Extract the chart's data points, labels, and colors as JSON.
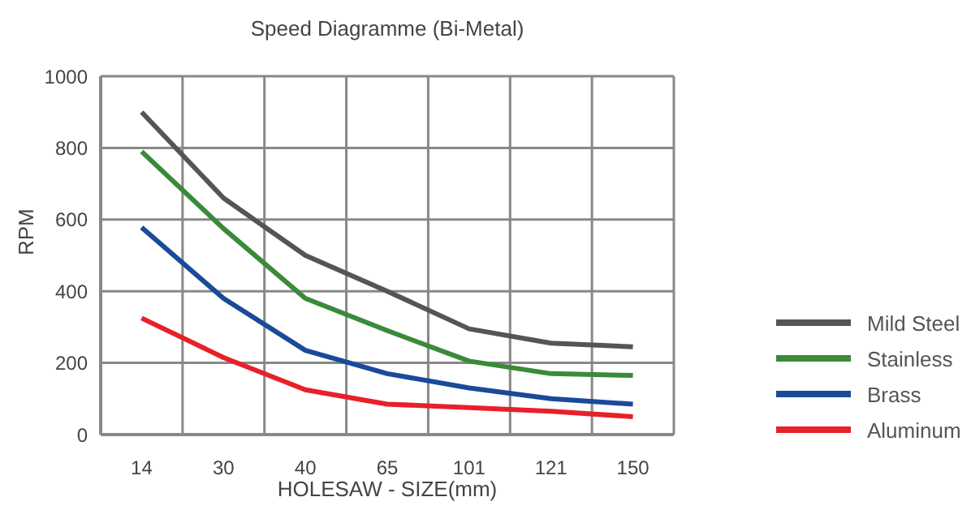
{
  "chart_data": {
    "type": "line",
    "title": "Speed Diagramme (Bi-Metal)",
    "xlabel": "HOLESAW - SIZE(mm)",
    "ylabel": "RPM",
    "categories": [
      "14",
      "30",
      "40",
      "65",
      "101",
      "121",
      "150"
    ],
    "series": [
      {
        "name": "Mild Steel",
        "color": "#555555",
        "values": [
          900,
          660,
          500,
          400,
          295,
          255,
          245
        ]
      },
      {
        "name": "Stainless",
        "color": "#3a8a3a",
        "values": [
          790,
          575,
          380,
          290,
          205,
          170,
          165
        ]
      },
      {
        "name": "Brass",
        "color": "#1a4a9a",
        "values": [
          578,
          380,
          235,
          170,
          130,
          100,
          85
        ]
      },
      {
        "name": "Aluminum",
        "color": "#e8202a",
        "values": [
          325,
          215,
          125,
          85,
          75,
          65,
          50
        ]
      }
    ],
    "ylim": [
      0,
      1000
    ],
    "yticks": [
      0,
      200,
      400,
      600,
      800,
      1000
    ],
    "grid": true,
    "legend": "right",
    "marker": "none",
    "line_style": "solid"
  }
}
